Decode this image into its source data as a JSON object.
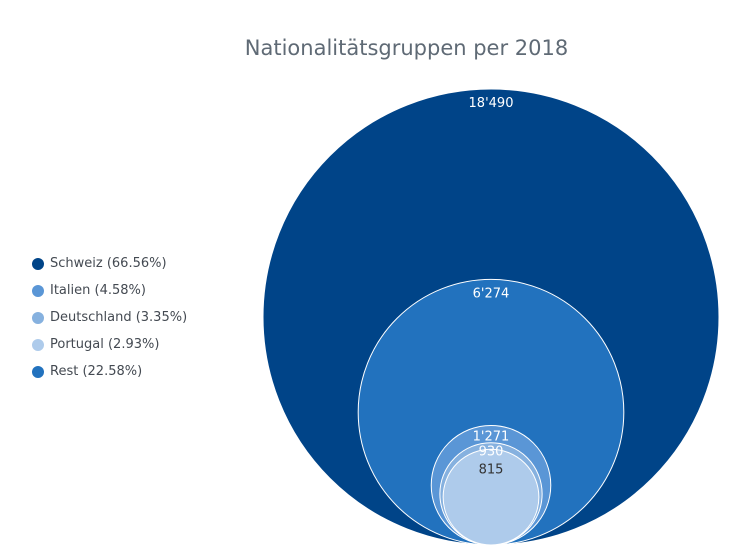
{
  "chart_data": {
    "type": "bubble",
    "title": "Nationalitätsgruppen per 2018",
    "series": [
      {
        "name": "Schweiz (66.56%)",
        "value": 18490,
        "label": "18'490",
        "color": "#004488",
        "label_color": "#ffffff"
      },
      {
        "name": "Italien (4.58%)",
        "value": 1271,
        "label": "1'271",
        "color": "#5a96d6",
        "label_color": "#ffffff"
      },
      {
        "name": "Deutschland (3.35%)",
        "value": 930,
        "label": "930",
        "color": "#86b1df",
        "label_color": "#ffffff"
      },
      {
        "name": "Portugal (2.93%)",
        "value": 815,
        "label": "815",
        "color": "#aecbeb",
        "label_color": "#333333"
      },
      {
        "name": "Rest (22.58%)",
        "value": 6274,
        "label": "6'274",
        "color": "#2272be",
        "label_color": "#ffffff"
      }
    ],
    "legend_position": "left"
  }
}
